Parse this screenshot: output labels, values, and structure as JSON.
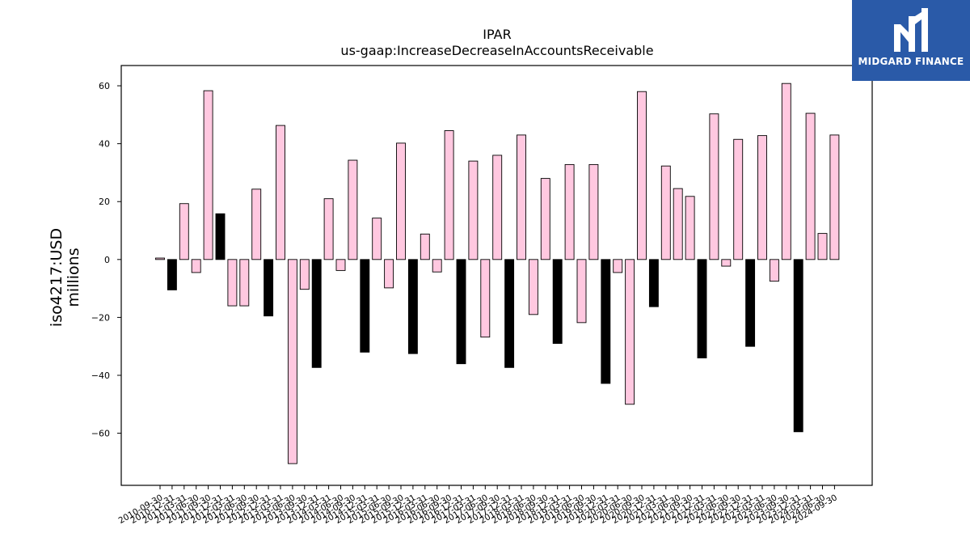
{
  "brand": {
    "name": "MIDGARD FINANCE",
    "logo_icon": "midgard-m-logo-icon",
    "background": "#2a5aa8"
  },
  "chart_data": {
    "type": "bar",
    "title": "IPAR",
    "subtitle": "us-gaap:IncreaseDecreaseInAccountsReceivable",
    "ylabel_line1": "iso4217:USD",
    "ylabel_line2": "millions",
    "xlabel": "",
    "ylim": [
      -78,
      67
    ],
    "yticks": [
      -60,
      -40,
      -20,
      0,
      20,
      40,
      60
    ],
    "ytick_labels": [
      "−60",
      "−40",
      "−20",
      "0",
      "20",
      "40",
      "60"
    ],
    "grid": false,
    "colors": {
      "quarter": "#ffc8e0",
      "annual": "#000000",
      "edge": "#000000"
    },
    "categories": [
      "2010-09-30",
      "2010-12-31",
      "2011-03-31",
      "2011-06-30",
      "2011-09-30",
      "2011-12-31",
      "2012-03-31",
      "2012-06-30",
      "2012-09-30",
      "2012-12-31",
      "2013-03-31",
      "2013-06-30",
      "2013-09-30",
      "2013-12-31",
      "2014-03-31",
      "2014-06-30",
      "2014-09-30",
      "2014-12-31",
      "2015-03-31",
      "2015-06-30",
      "2015-09-30",
      "2015-12-31",
      "2016-03-31",
      "2016-06-30",
      "2016-09-30",
      "2016-12-31",
      "2017-03-31",
      "2017-06-30",
      "2017-09-30",
      "2017-12-31",
      "2018-03-31",
      "2018-06-30",
      "2018-09-30",
      "2018-12-31",
      "2019-03-31",
      "2019-06-30",
      "2019-09-30",
      "2019-12-31",
      "2020-03-31",
      "2020-06-30",
      "2020-09-30",
      "2020-12-31",
      "2021-03-31",
      "2021-06-30",
      "2021-09-30",
      "2021-12-31",
      "2022-03-31",
      "2022-06-30",
      "2022-09-30",
      "2022-12-31",
      "2023-03-31",
      "2023-06-30",
      "2023-09-30",
      "2023-12-31",
      "2024-03-31",
      "2024-06-30",
      "2024-09-30"
    ],
    "values": [
      0.5,
      -10.5,
      19.3,
      -4.5,
      58.3,
      15.8,
      -16.0,
      -16.0,
      24.3,
      -19.5,
      46.3,
      -70.5,
      -10.3,
      -37.3,
      21.0,
      -3.8,
      34.3,
      -32.0,
      14.3,
      -9.8,
      40.2,
      -32.5,
      8.8,
      -4.3,
      44.5,
      -36.0,
      34.0,
      -26.8,
      36.0,
      -37.3,
      43.0,
      -19.0,
      28.0,
      -29.0,
      32.8,
      -21.8,
      32.8,
      -42.8,
      -4.5,
      -50.0,
      58.0,
      -16.3,
      32.3,
      24.5,
      21.8,
      -34.0,
      50.3,
      -2.3,
      41.5,
      -30.0,
      42.8,
      -7.5,
      60.8,
      -59.5,
      50.5,
      9.0,
      43.0
    ],
    "annual": [
      false,
      true,
      false,
      false,
      false,
      true,
      false,
      false,
      false,
      true,
      false,
      false,
      false,
      true,
      false,
      false,
      false,
      true,
      false,
      false,
      false,
      true,
      false,
      false,
      false,
      true,
      false,
      false,
      false,
      true,
      false,
      false,
      false,
      true,
      false,
      false,
      false,
      true,
      false,
      false,
      false,
      true,
      false,
      false,
      false,
      true,
      false,
      false,
      false,
      true,
      false,
      false,
      false,
      true,
      false,
      false,
      false
    ]
  }
}
